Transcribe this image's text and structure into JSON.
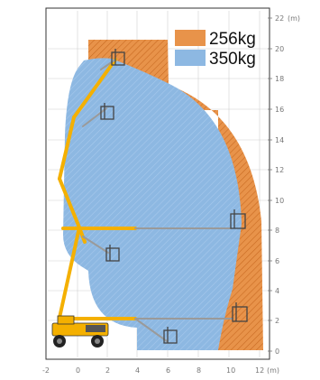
{
  "diagram": {
    "type": "aerial-lift-working-envelope",
    "legend": [
      {
        "label": "256kg",
        "color": "#e8934a",
        "role": "outer-zone"
      },
      {
        "label": "350kg",
        "color": "#8db8e2",
        "role": "inner-zone"
      }
    ],
    "x_axis": {
      "ticks": [
        "-2",
        "0",
        "2",
        "4",
        "6",
        "8",
        "10",
        "12"
      ],
      "unit": "(m)"
    },
    "y_axis": {
      "ticks": [
        "22",
        "20",
        "18",
        "16",
        "14",
        "12",
        "10",
        "8",
        "6",
        "4",
        "2",
        "0"
      ],
      "unit": "(m)"
    },
    "colors": {
      "zone_256": "#e8934a",
      "zone_350": "#8db8e2",
      "lift_yellow": "#f4b000",
      "grid": "#cfcfcf",
      "frame": "#333333"
    },
    "icons": [
      "aerial-work-platform-icon",
      "platform-basket-icon"
    ]
  }
}
